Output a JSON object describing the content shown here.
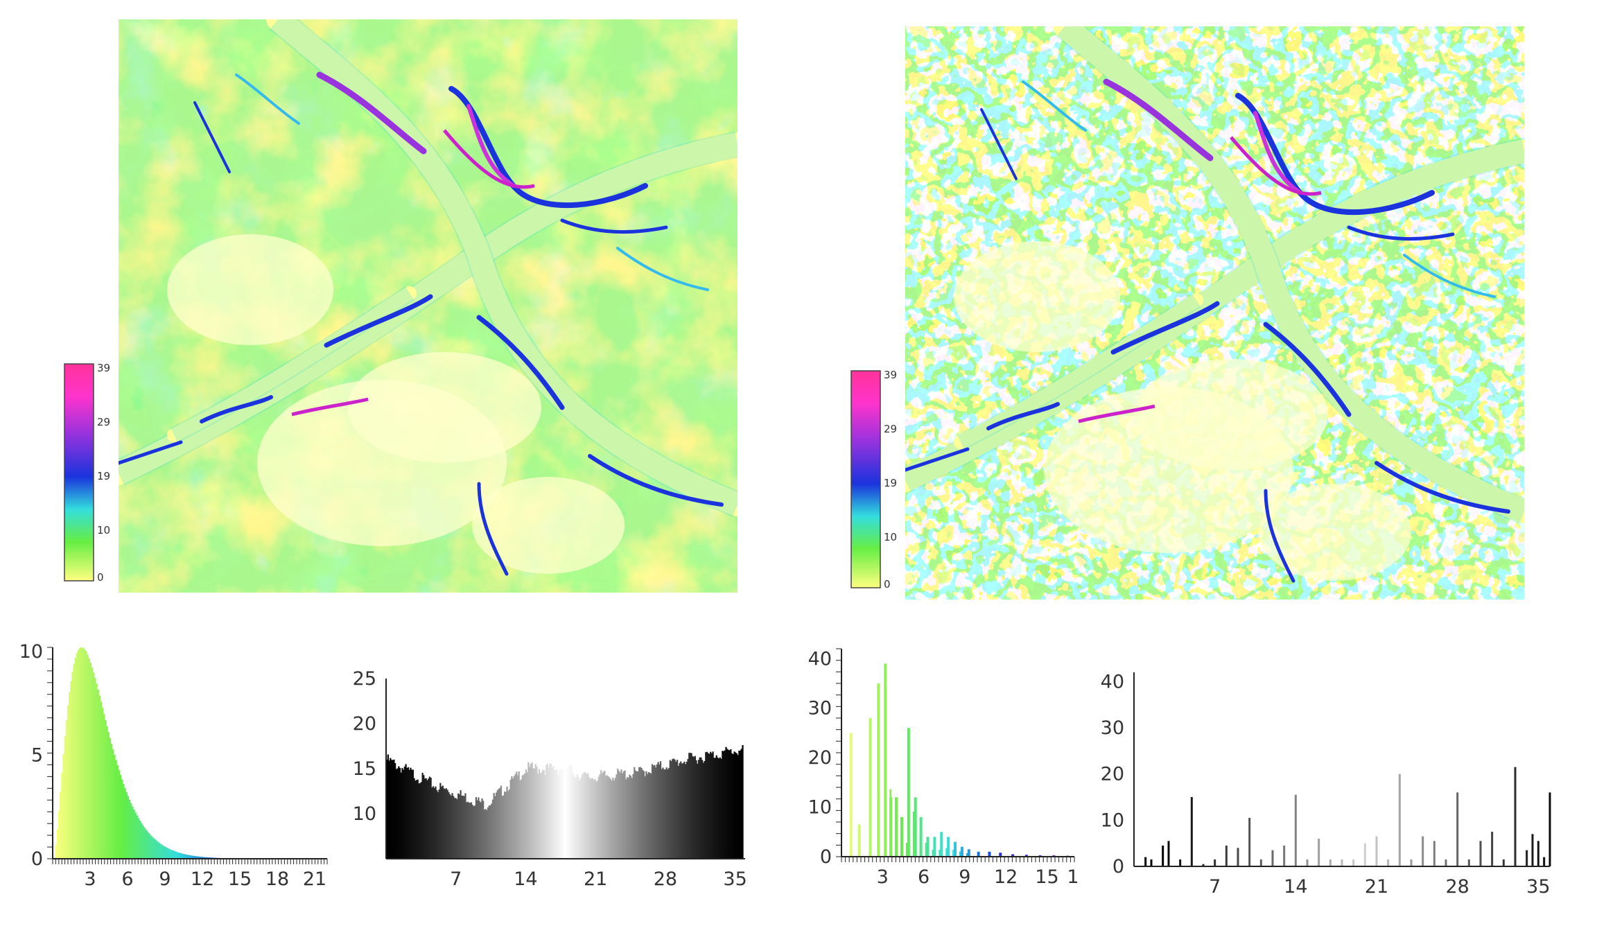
{
  "colors": {
    "yellow": "#ffff80",
    "green": "#66ee44",
    "cyan": "#33dddd",
    "blue": "#1a33dd",
    "purple": "#9933dd",
    "magenta": "#ff3399",
    "white": "#ffffff"
  },
  "maps": [
    {
      "name": "slope-map-left",
      "style": "filled"
    },
    {
      "name": "slope-map-right",
      "style": "contour"
    }
  ],
  "colorbars": [
    {
      "labels": [
        "39",
        "29",
        "19",
        "10",
        "0"
      ]
    },
    {
      "labels": [
        "39",
        "29",
        "19",
        "10",
        "0"
      ]
    }
  ],
  "chart_data": [
    {
      "type": "bar",
      "description_key": "histogram-1",
      "x": {
        "ticks": [
          "3",
          "6",
          "9",
          "12",
          "15",
          "18",
          "21"
        ],
        "range": [
          0,
          22
        ]
      },
      "y": {
        "ticks": [
          "0",
          "5",
          "10"
        ],
        "range": [
          0,
          10.2
        ]
      },
      "colormap": "yellow-green-cyan-blue",
      "peak_x": 2.3,
      "peak_y": 10.2
    },
    {
      "type": "bar",
      "description_key": "histogram-2",
      "x": {
        "ticks": [
          "7",
          "14",
          "21",
          "28",
          "35"
        ],
        "range": [
          0,
          36
        ]
      },
      "y": {
        "ticks": [
          "10",
          "15",
          "20",
          "25"
        ],
        "range": [
          5,
          25
        ]
      },
      "colormap": "black-white-black",
      "shape": [
        [
          0,
          16
        ],
        [
          5,
          13
        ],
        [
          10,
          11
        ],
        [
          14,
          15
        ],
        [
          18,
          15
        ],
        [
          20,
          14
        ],
        [
          25,
          14.5
        ],
        [
          30,
          16
        ],
        [
          35,
          17
        ]
      ]
    },
    {
      "type": "bar",
      "description_key": "histogram-3",
      "x": {
        "ticks": [
          "3",
          "6",
          "9",
          "12",
          "15",
          "1"
        ],
        "range": [
          0,
          17
        ]
      },
      "y": {
        "ticks": [
          "0",
          "10",
          "20",
          "30",
          "40"
        ],
        "range": [
          0,
          42
        ]
      },
      "values": [
        [
          0.7,
          25
        ],
        [
          1.3,
          6.5
        ],
        [
          2.1,
          28
        ],
        [
          2.7,
          35
        ],
        [
          3.2,
          39
        ],
        [
          3.6,
          12
        ],
        [
          4.0,
          12
        ],
        [
          4.4,
          8
        ],
        [
          4.9,
          26
        ],
        [
          5.4,
          12
        ],
        [
          5.8,
          8
        ],
        [
          6.3,
          4
        ],
        [
          6.8,
          4
        ],
        [
          7.3,
          5
        ],
        [
          7.8,
          4
        ],
        [
          8.3,
          3
        ],
        [
          8.8,
          2
        ],
        [
          9.3,
          1.5
        ],
        [
          10.0,
          1
        ],
        [
          10.8,
          1
        ],
        [
          11.6,
          0.8
        ],
        [
          12.5,
          0.5
        ],
        [
          13.5,
          0.4
        ],
        [
          14.5,
          0.3
        ],
        [
          15.5,
          0.3
        ],
        [
          16.5,
          0.2
        ]
      ]
    },
    {
      "type": "bar",
      "description_key": "histogram-4",
      "x": {
        "ticks": [
          "7",
          "14",
          "21",
          "28",
          "35"
        ],
        "range": [
          0,
          36
        ]
      },
      "y": {
        "ticks": [
          "0",
          "10",
          "20",
          "30",
          "40"
        ],
        "range": [
          0,
          42
        ]
      },
      "values": [
        [
          1.0,
          2
        ],
        [
          1.5,
          1.5
        ],
        [
          2.5,
          4.5
        ],
        [
          3.0,
          5.5
        ],
        [
          4.0,
          1.5
        ],
        [
          5.0,
          15
        ],
        [
          6.0,
          0.5
        ],
        [
          7.0,
          1.5
        ],
        [
          8.0,
          4.5
        ],
        [
          9.0,
          4
        ],
        [
          10.0,
          10.5
        ],
        [
          11.0,
          1.5
        ],
        [
          12.0,
          3.5
        ],
        [
          13.0,
          4.5
        ],
        [
          14.0,
          15.5
        ],
        [
          15.0,
          1.5
        ],
        [
          16.0,
          6
        ],
        [
          17.0,
          1.5
        ],
        [
          18.0,
          1.5
        ],
        [
          19.0,
          1.5
        ],
        [
          20.0,
          5
        ],
        [
          21.0,
          6.5
        ],
        [
          22.0,
          1.5
        ],
        [
          23.0,
          20
        ],
        [
          24.0,
          1.5
        ],
        [
          25.0,
          6.5
        ],
        [
          26.0,
          5.5
        ],
        [
          27.0,
          1.5
        ],
        [
          28.0,
          16
        ],
        [
          29.0,
          1.5
        ],
        [
          30.0,
          5.5
        ],
        [
          31.0,
          7.5
        ],
        [
          32.0,
          1.5
        ],
        [
          33.0,
          21.5
        ],
        [
          34.0,
          3.5
        ],
        [
          34.5,
          7
        ],
        [
          35.0,
          5.5
        ],
        [
          35.5,
          2
        ],
        [
          36.0,
          16
        ]
      ]
    }
  ]
}
